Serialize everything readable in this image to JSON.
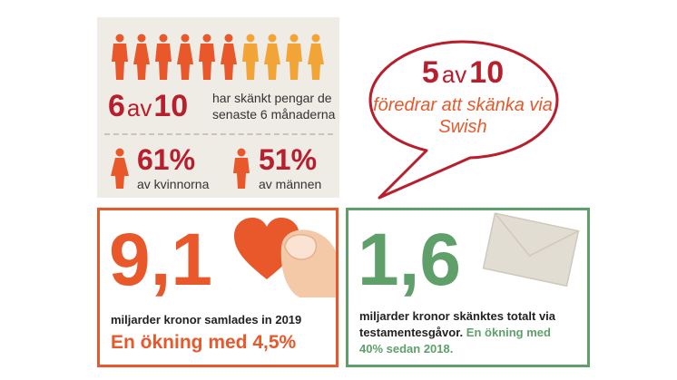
{
  "colors": {
    "red": "#b81e2c",
    "orange": "#e8582b",
    "yellow": "#f3a437",
    "green": "#5fa06a",
    "beige": "#efece6"
  },
  "donors": {
    "count": "6",
    "av": "av",
    "total": "10",
    "description": "har skänkt pengar de senaste 6 månaderna",
    "icons": [
      "person-orange",
      "person-orange",
      "person-orange",
      "person-orange",
      "person-orange",
      "person-orange",
      "person-yellow",
      "person-yellow",
      "person-yellow",
      "person-yellow"
    ]
  },
  "women": {
    "percent": "61%",
    "label": "av kvinnorna",
    "icon": "woman-icon"
  },
  "men": {
    "percent": "51%",
    "label": "av männen",
    "icon": "man-icon"
  },
  "swish": {
    "count": "5",
    "av": "av",
    "total": "10",
    "text": "föredrar att skänka via Swish"
  },
  "collected": {
    "number": "9,1",
    "text": "miljarder kronor samlades in 2019",
    "highlight": "En ökning med 4,5%",
    "icon": "heart-icon"
  },
  "bequest": {
    "number": "1,6",
    "text": "miljarder kronor skänktes totalt via testamentesgåvor.",
    "highlight": "En ökning med 40% sedan 2018.",
    "icon": "envelope-icon"
  }
}
